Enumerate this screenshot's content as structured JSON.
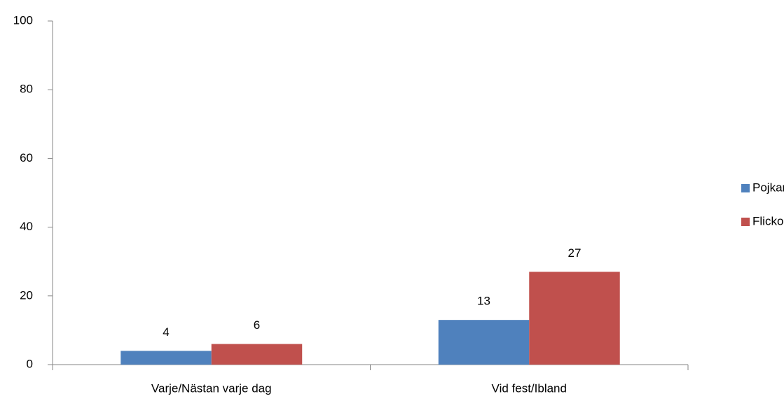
{
  "chart_data": {
    "type": "bar",
    "categories": [
      "Varje/Nästan varje dag",
      "Vid fest/Ibland"
    ],
    "series": [
      {
        "name": "Pojkar",
        "color": "#4f81bd",
        "values": [
          4,
          13
        ]
      },
      {
        "name": "Flickor",
        "color": "#c0504d",
        "values": [
          6,
          27
        ]
      }
    ],
    "ylim": [
      0,
      100
    ],
    "yticks": [
      0,
      20,
      40,
      60,
      80,
      100
    ],
    "grid": false,
    "legend": "right",
    "data_labels": true
  }
}
